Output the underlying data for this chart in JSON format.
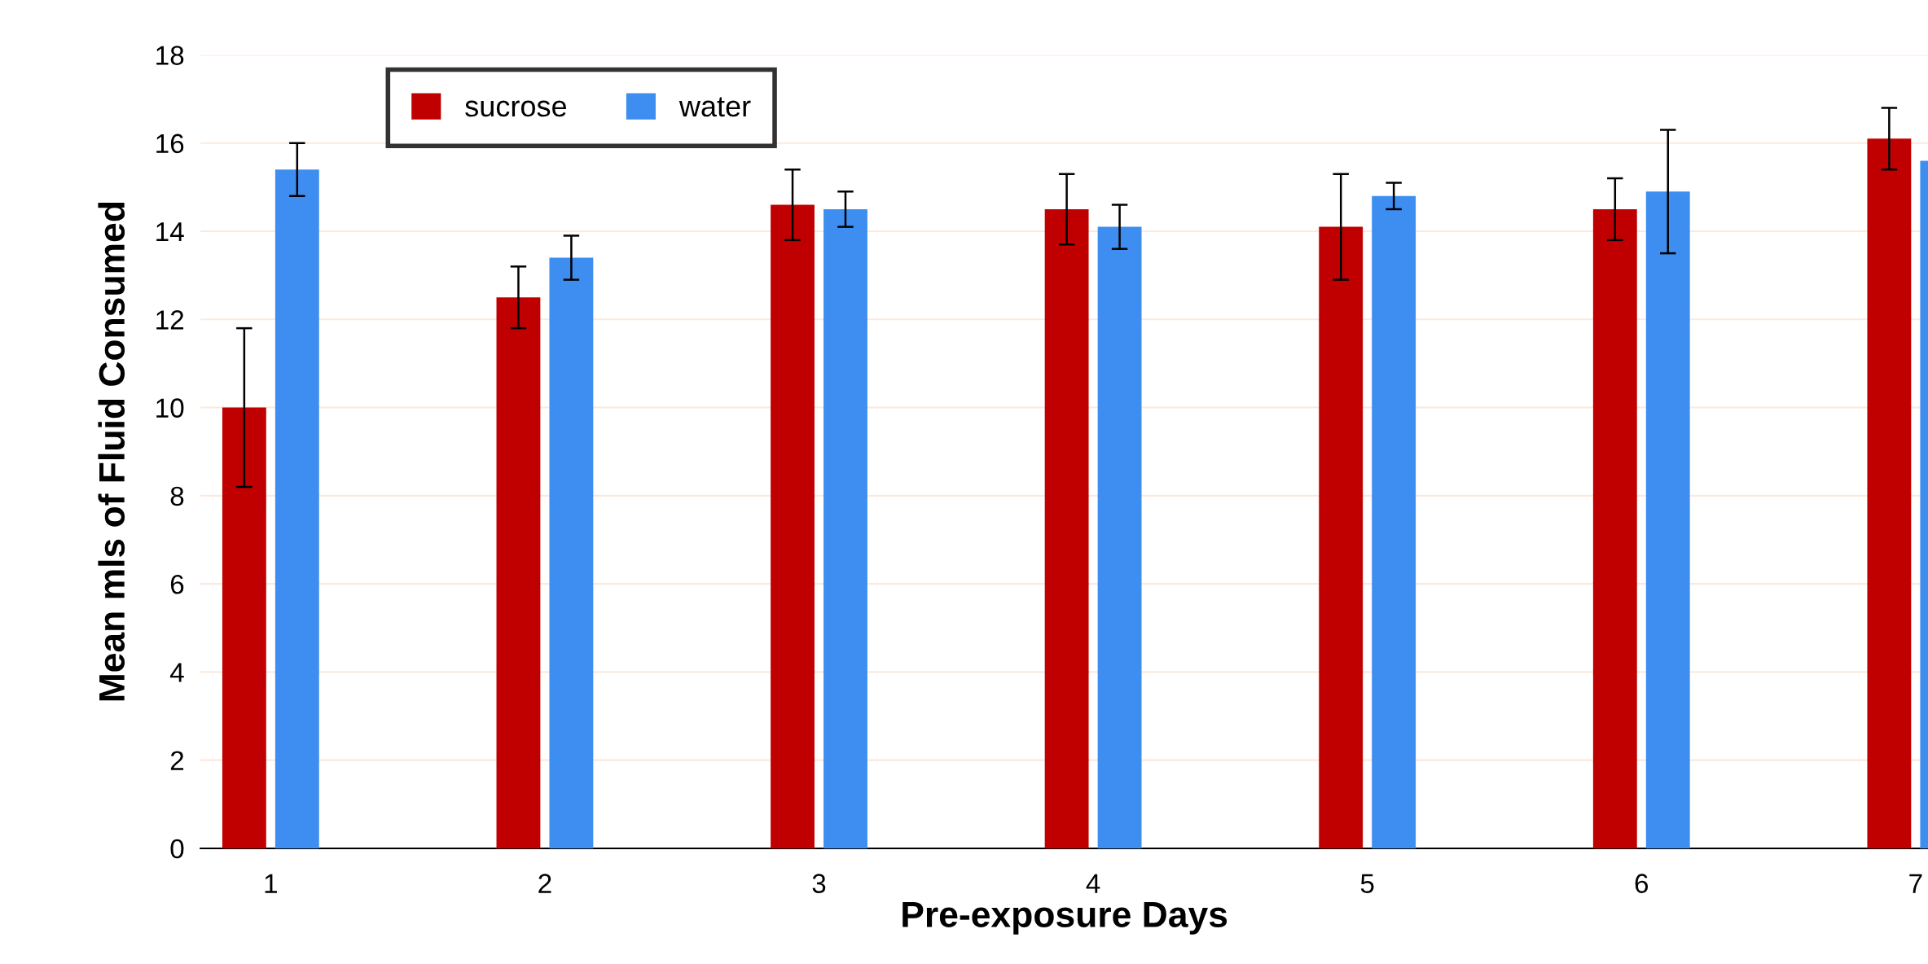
{
  "chart_data": {
    "type": "bar",
    "xlabel": "Pre-exposure Days",
    "ylabel": "Mean mls of Fluid Consumed",
    "categories": [
      "1",
      "2",
      "3",
      "4",
      "5",
      "6",
      "7"
    ],
    "series": [
      {
        "name": "sucrose",
        "color": "#c00000",
        "values": [
          10,
          12.5,
          14.6,
          14.5,
          14.1,
          14.5,
          16.1
        ],
        "errors": [
          1.8,
          0.7,
          0.8,
          0.8,
          1.2,
          0.7,
          0.7
        ]
      },
      {
        "name": "water",
        "color": "#3d8ef0",
        "values": [
          15.4,
          13.4,
          14.5,
          14.1,
          14.8,
          14.9,
          15.6
        ],
        "errors": [
          0.6,
          0.5,
          0.4,
          0.5,
          0.3,
          1.4,
          null
        ]
      }
    ],
    "ylim": [
      0,
      18
    ],
    "yticks": [
      0,
      2,
      4,
      6,
      8,
      10,
      12,
      14,
      16,
      18
    ],
    "grid": "y",
    "legend": "top left"
  }
}
